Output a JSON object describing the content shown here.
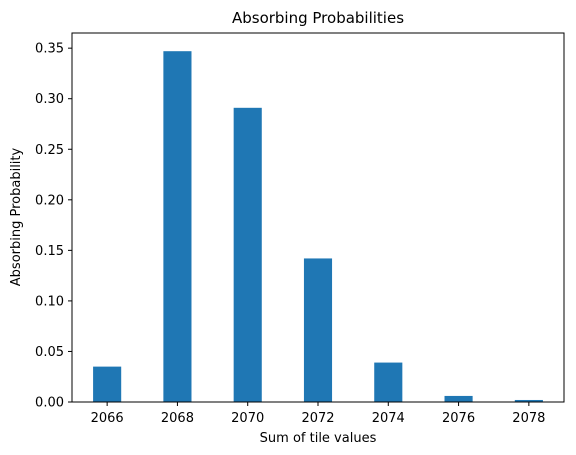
{
  "chart_data": {
    "type": "bar",
    "title": "Absorbing Probabilities",
    "xlabel": "Sum of tile values",
    "ylabel": "Absorbing Probability",
    "x": [
      2066,
      2068,
      2070,
      2072,
      2074,
      2076,
      2078
    ],
    "values": [
      0.035,
      0.347,
      0.291,
      0.142,
      0.039,
      0.006,
      0.002
    ],
    "xlim": [
      2065.0,
      2079.0
    ],
    "ylim": [
      0,
      0.365
    ],
    "xticks": [
      "2066",
      "2068",
      "2070",
      "2072",
      "2074",
      "2076",
      "2078"
    ],
    "yticks": [
      "0.00",
      "0.05",
      "0.10",
      "0.15",
      "0.20",
      "0.25",
      "0.30",
      "0.35"
    ],
    "grid": false,
    "bar_color": "#1f77b4"
  }
}
